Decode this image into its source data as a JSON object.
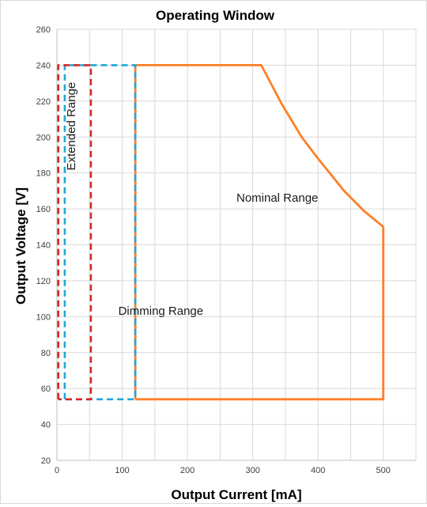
{
  "chart_data": {
    "type": "line",
    "title": "Operating Window",
    "xlabel": "Output Current [mA]",
    "ylabel": "Output Voltage [V]",
    "xlim": [
      0,
      550
    ],
    "ylim": [
      20,
      260
    ],
    "xticks": [
      0,
      100,
      200,
      300,
      400,
      500
    ],
    "yticks": [
      20,
      40,
      60,
      80,
      100,
      120,
      140,
      160,
      180,
      200,
      220,
      240,
      260
    ],
    "grid": true,
    "series": [
      {
        "color": "#ff7f27",
        "style": "solid",
        "points": [
          [
            120,
            54
          ],
          [
            120,
            240
          ],
          [
            313,
            240
          ],
          [
            345,
            218
          ],
          [
            375,
            200
          ],
          [
            400,
            188
          ],
          [
            440,
            170
          ],
          [
            470,
            159
          ],
          [
            500,
            150
          ],
          [
            500,
            54
          ],
          [
            120,
            54
          ]
        ]
      },
      {
        "color": "#1fa7d6",
        "style": "dashed",
        "points": [
          [
            12,
            54
          ],
          [
            12,
            240
          ],
          [
            120,
            240
          ],
          [
            120,
            54
          ],
          [
            12,
            54
          ]
        ]
      },
      {
        "color": "#d62728",
        "style": "dashed",
        "points": [
          [
            2,
            54
          ],
          [
            2,
            240
          ],
          [
            52,
            240
          ],
          [
            52,
            54
          ],
          [
            2,
            54
          ]
        ]
      }
    ],
    "annotations": [
      {
        "text": "Nominal Range",
        "x": 275,
        "y": 164,
        "rotate": 0
      },
      {
        "text": "Extended Range",
        "x": 28,
        "y": 206,
        "rotate": -90
      },
      {
        "text": "Dimming Range",
        "x": 94,
        "y": 101,
        "rotate": 0
      }
    ]
  }
}
